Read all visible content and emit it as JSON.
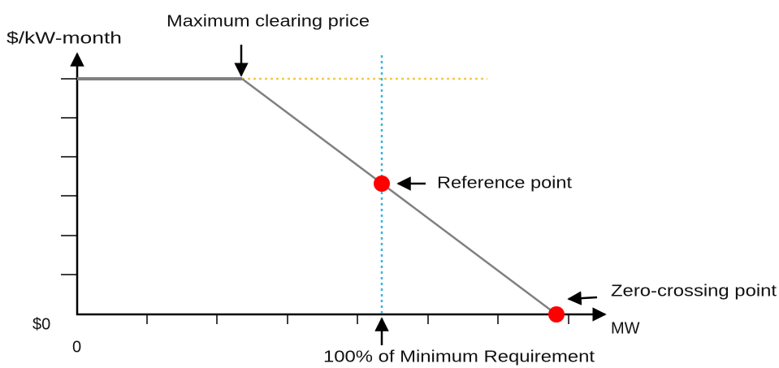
{
  "axes": {
    "y_label": "$/kW-month",
    "x_label": "MW",
    "y_origin_label": "$0",
    "x_origin_label": "0"
  },
  "annotations": {
    "max_price": "Maximum clearing price",
    "reference": "Reference point",
    "zero_crossing": "Zero-crossing point",
    "requirement": "100% of Minimum Requirement"
  }
}
